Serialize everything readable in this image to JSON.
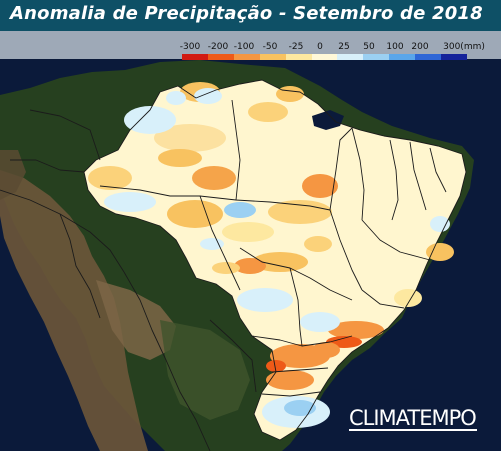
{
  "title": "Anomalia de Precipitação - Setembro de 2018",
  "legend": {
    "labels": [
      "-300",
      "-200",
      "-100",
      "-50",
      "-25",
      "0",
      "25",
      "50",
      "100",
      "200",
      "300(mm)"
    ],
    "colors": [
      "#d21a12",
      "#ee5a18",
      "#f59642",
      "#f8c260",
      "#fde8a0",
      "#fff8d8",
      "#d8f0fa",
      "#9bd0f2",
      "#5aa6ea",
      "#2e66d6",
      "#14229a"
    ]
  },
  "brand": "CLIMATEMPO",
  "colors": {
    "ocean": "#0b1a3a",
    "land_dark": "#27401e",
    "andes": "#6a5438",
    "title_bar": "#0e5066"
  }
}
